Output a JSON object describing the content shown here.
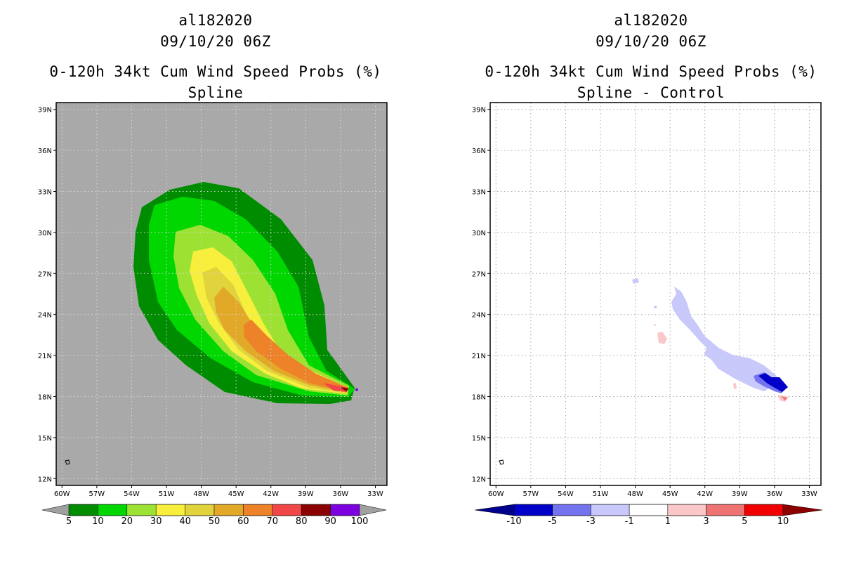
{
  "chart_data": [
    {
      "type": "heatmap",
      "storm_id": "al182020",
      "datetime": "09/10/20 06Z",
      "title": "0-120h 34kt Cum Wind Speed Probs (%)",
      "subtitle": "Spline",
      "xlim": [
        -60.5,
        -32
      ],
      "ylim": [
        11.5,
        39.5
      ],
      "x_ticks": [
        "60W",
        "57W",
        "54W",
        "51W",
        "48W",
        "45W",
        "42W",
        "39W",
        "36W",
        "33W"
      ],
      "y_ticks": [
        "12N",
        "15N",
        "18N",
        "21N",
        "24N",
        "27N",
        "30N",
        "33N",
        "36N",
        "39N"
      ],
      "colorbar": {
        "labels": [
          "5",
          "10",
          "20",
          "30",
          "40",
          "50",
          "60",
          "70",
          "80",
          "90",
          "100"
        ],
        "colors": [
          "#008c00",
          "#00d700",
          "#9de233",
          "#f7ef3c",
          "#e1d33c",
          "#e2a828",
          "#ee8228",
          "#f04648",
          "#8b0000",
          "#7d00e1"
        ],
        "under": "#a0a0a0",
        "over": "#a0a0a0"
      },
      "background_color": "#a9a9a9",
      "max_location": [
        -34.6,
        18.5
      ]
    },
    {
      "type": "heatmap",
      "storm_id": "al182020",
      "datetime": "09/10/20 06Z",
      "title": "0-120h 34kt Cum Wind Speed Probs (%)",
      "subtitle": "Spline - Control",
      "xlim": [
        -60.5,
        -32
      ],
      "ylim": [
        11.5,
        39.5
      ],
      "x_ticks": [
        "60W",
        "57W",
        "54W",
        "51W",
        "48W",
        "45W",
        "42W",
        "39W",
        "36W",
        "33W"
      ],
      "y_ticks": [
        "12N",
        "15N",
        "18N",
        "21N",
        "24N",
        "27N",
        "30N",
        "33N",
        "36N",
        "39N"
      ],
      "colorbar": {
        "labels": [
          "-10",
          "-5",
          "-3",
          "-1",
          "1",
          "3",
          "5",
          "10"
        ],
        "colors": [
          "#0000c8",
          "#7373f0",
          "#c8c8fa",
          "#ffffff",
          "#fac8c8",
          "#f07373",
          "#f00000"
        ],
        "under": "#00008c",
        "over": "#8c0000"
      },
      "background_color": "#ffffff"
    }
  ]
}
